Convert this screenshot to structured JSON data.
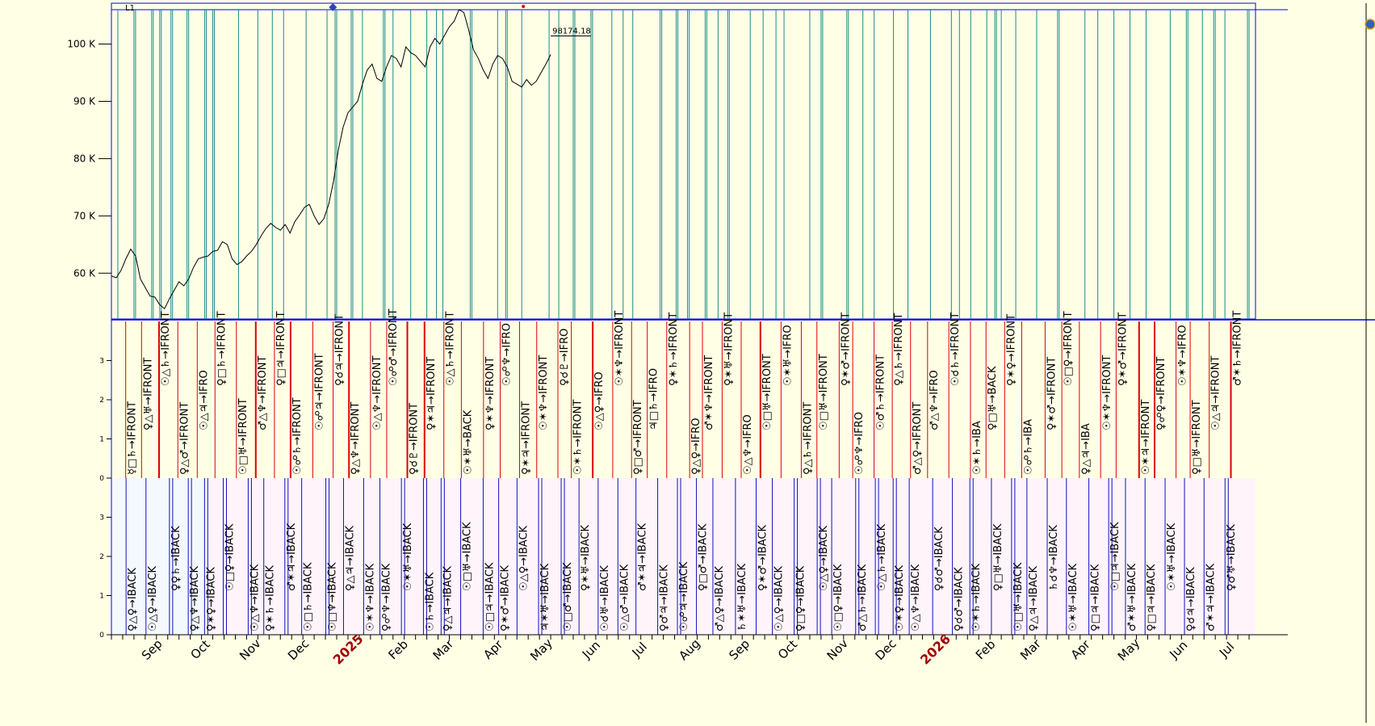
{
  "app": {
    "panel_label": "L1",
    "corner_icon": "globe-icon"
  },
  "colors": {
    "bg": "#ffffe6",
    "panel_front": "#ffffe6",
    "panel_back": "#fff4fa",
    "panel_back_alt": "#f4f8ff",
    "price_line": "#000000",
    "front_line": "#1a8a8a",
    "red_line": "#e00000",
    "blue_line": "#1010c0",
    "axis_blue": "#0000ff",
    "year_red": "#a00000",
    "text": "#000000"
  },
  "chart_data": [
    {
      "type": "line",
      "name": "price-panel",
      "title": "",
      "y_ticks": [
        "100 K",
        "90 K",
        "80 K",
        "70 K",
        "60 K"
      ],
      "y_tick_values": [
        100000,
        90000,
        80000,
        70000,
        60000
      ],
      "ylim": [
        52000,
        106000
      ],
      "last_value_label": "98174.18",
      "series": [
        {
          "name": "price",
          "x_days": [
            0,
            3,
            6,
            9,
            12,
            15,
            18,
            21,
            24,
            27,
            30,
            33,
            36,
            39,
            42,
            45,
            48,
            51,
            54,
            57,
            60,
            63,
            66,
            69,
            72,
            75,
            78,
            81,
            84,
            87,
            90,
            93,
            96,
            99,
            102,
            105,
            108,
            111,
            114,
            117,
            120,
            123,
            126,
            129,
            132,
            135,
            138,
            141,
            144,
            147,
            150,
            153,
            156,
            159,
            162,
            165,
            168,
            171,
            174,
            177,
            180,
            183,
            186,
            189,
            192,
            195,
            198,
            201,
            204,
            207,
            210,
            213,
            216,
            219,
            222,
            225,
            228,
            231,
            234,
            237,
            240,
            243,
            246,
            249,
            252,
            255,
            258,
            261,
            264,
            267,
            270,
            273
          ],
          "values": [
            59500,
            59200,
            60500,
            62500,
            64200,
            63000,
            59000,
            57500,
            56000,
            55800,
            54500,
            53800,
            55500,
            57000,
            58500,
            57800,
            59000,
            61000,
            62500,
            62800,
            63000,
            63800,
            64000,
            65500,
            65000,
            62500,
            61500,
            62000,
            63000,
            63800,
            65000,
            66500,
            67800,
            68700,
            68000,
            67500,
            68500,
            67000,
            69000,
            70200,
            71500,
            72000,
            70000,
            68500,
            69500,
            72000,
            76000,
            81500,
            85500,
            88000,
            89000,
            90000,
            93000,
            95500,
            96500,
            94000,
            93500,
            96000,
            98000,
            97500,
            96000,
            99500,
            98500,
            98000,
            97000,
            96000,
            99500,
            101000,
            100000,
            101500,
            103000,
            104000,
            106000,
            105500,
            102500,
            99000,
            97500,
            95500,
            94000,
            96500,
            98000,
            97500,
            96000,
            93500,
            93000,
            92500,
            93800,
            92800,
            93500,
            95000,
            96500,
            98174
          ]
        }
      ]
    },
    {
      "type": "event_lines",
      "name": "front-panel",
      "y_ticks": [
        "3",
        "2",
        "1",
        "0"
      ],
      "ylim": [
        0,
        4
      ],
      "labels": [
        "☿□♄→IFRONT",
        "♀△♅→IFRONT",
        "☉△♄→IFRONT",
        "♀△♂→IFRONT",
        "☉△♃→IFRO",
        "♀□♄→IFRONT",
        "☉□♅→IFRONT",
        "♂△♆→IFRONT",
        "♀□♃→IFRONT",
        "☉☍♄→IFRONT",
        "☉☍♃→IFRONT",
        "♀☌♃→IFRONT",
        "♀△♆→IFRONT",
        "☉△♆→IFRONT",
        "☉☍♂→IFRONT",
        "♀☌♇→IFRONT",
        "♀✶♃→IFRONT",
        "☉△♄→IFRONT",
        "☉✶♅→BACK",
        "♀✶♆→IFRONT",
        "☉☍♆→IFRO",
        "♀✶♃→IFRONT",
        "☉✶♆→IFRONT",
        "♀☌♇→IFRO",
        "☉✶♄→IFRONT",
        "☉△♀→IFRO",
        "☉✶♆→IFRONT",
        "♀□♂→IFRONT",
        "♃□♄→IFRO",
        "♀✶♄→IFRONT",
        "♀△♀→IFRO",
        "♂✶♆→IFRONT",
        "♀✶♅→IFRONT",
        "☉△♆→IFRO",
        "☉□♅→IFRONT",
        "☉✶♅→IFRO",
        "♀△♄→IFRONT",
        "☉□♅→IFRONT",
        "♀✶♂→IFRONT",
        "☉☍♆→IFRO",
        "☉♂♄→IFRONT",
        "♀△♄→IFRONT",
        "♂△♀→IFRONT",
        "♂△♆→IFRO",
        "☉☌♄→IFRONT",
        "☉✶♄→IBA",
        "♀□♅→BACK",
        "♀✶♀→IFRONT",
        "☉☍♄→IBA",
        "♀✶♂→IFRONT",
        "☉□♀→IFRONT",
        "♀△♃→IBA",
        "☉✶♆→IFRONT",
        "♀✶♂→IFRONT",
        "☉✶♃→IFRONT",
        "♀☍♀→IFRONT",
        "☉✶♆→IFRO",
        "♀□♅→IFRONT",
        "☉△♃→IFRONT",
        "♂✶♄→IFRONT"
      ]
    },
    {
      "type": "event_lines",
      "name": "back-panel",
      "y_ticks": [
        "3",
        "2",
        "1",
        "0"
      ],
      "ylim": [
        0,
        4
      ],
      "labels": [
        "♀△♀→IBACK",
        "☉△♀→IBACK",
        "♀♀♄→IBACK",
        "♀△♆→IBACK",
        "♀✶♀→IBACK",
        "☉□♀→IBACK",
        "☉△♆→IBACK",
        "♀✶♄→IBACK",
        "♂✶♃→IBACK",
        "☉□♄→IBACK",
        "☉□♆→IBACK",
        "♀△♃→IBACK",
        "☉✶♆→IBACK",
        "♀☍♆→IBACK",
        "☉✶♅→IBACK",
        "☉♄→IBACK",
        "♀△♃→IBACK",
        "☉□♅→IBACK",
        "☉□♃→IBACK",
        "♀✶♂→IBACK",
        "☉△♀→IBACK",
        "♃✶♅→IBACK",
        "☉□♂→IBACK",
        "♀✶♅→IBACK",
        "☉☌♅→IBACK",
        "☉△♂→IBACK",
        "♂✶♃→IBACK",
        "♀♂♃→IBACK",
        "☉☍♃→IBACK",
        "♀□♂→IBACK",
        "♂△♀→IBACK",
        "♄✶♅→IBACK",
        "♀✶♂→IBACK",
        "☉△♀→IBACK",
        "♀□♀→IBACK",
        "☉△♀→IBACK",
        "☉□♀→IBACK",
        "♂△♄→IBACK",
        "☉△♄→IBACK",
        "☉✶♀→IBACK",
        "☉△♆→IBACK",
        "♀☌♂→IBACK",
        "♀☌♂→IBACK",
        "☉✶♄→IBACK",
        "♀□♅→IBACK",
        "☉□♅→IBACK",
        "♀△♃→IBACK",
        "♄☌♆→IBACK",
        "☉✶♅→IBACK",
        "♀□♃→IBACK",
        "☉□♃→IBACK",
        "♂✶♅→IBACK",
        "♀□♃→IBACK",
        "☉✶♅→IBACK",
        "♀☌♃→IBACK",
        "♂✶♃→IBACK",
        "♀♂♅→IBACK"
      ]
    },
    {
      "type": "axis",
      "name": "time-axis",
      "month_labels": [
        "Sep",
        "Oct",
        "Nov",
        "Dec",
        "2025",
        "Feb",
        "Mar",
        "Apr",
        "May",
        "Jun",
        "Jul",
        "Aug",
        "Sep",
        "Oct",
        "Nov",
        "Dec",
        "2026",
        "Feb",
        "Mar",
        "Apr",
        "May",
        "Jun",
        "Jul"
      ],
      "year_labels": [
        "2025",
        "2026"
      ],
      "start_date": "2024-08-19",
      "end_date": "2026-07-31"
    }
  ]
}
